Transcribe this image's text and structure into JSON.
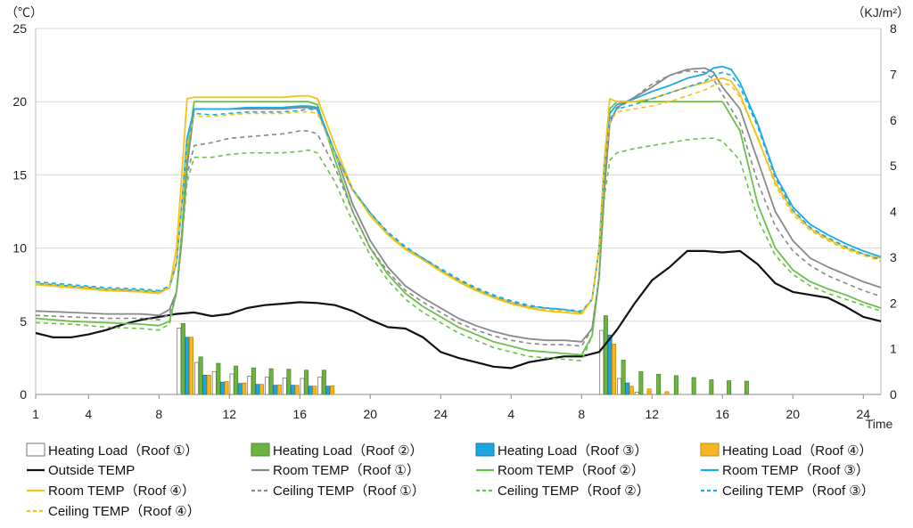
{
  "chart_data": {
    "type": "line",
    "title": "",
    "left_unit": "（℃）",
    "right_unit": "（KJ/m²）",
    "xlabel": "Time",
    "left_ylim": [
      0,
      25
    ],
    "right_ylim": [
      0,
      8
    ],
    "left_ticks": [
      0,
      5,
      10,
      15,
      20,
      25
    ],
    "right_ticks": [
      0,
      1,
      2,
      3,
      4,
      5,
      6,
      7,
      8
    ],
    "x_range": [
      0,
      48
    ],
    "x_ticks": [
      {
        "pos": 0,
        "label": "1"
      },
      {
        "pos": 3,
        "label": "4"
      },
      {
        "pos": 7,
        "label": "8"
      },
      {
        "pos": 11,
        "label": "12"
      },
      {
        "pos": 15,
        "label": "16"
      },
      {
        "pos": 19,
        "label": "20"
      },
      {
        "pos": 23,
        "label": "24"
      },
      {
        "pos": 27,
        "label": "4"
      },
      {
        "pos": 31,
        "label": "8"
      },
      {
        "pos": 35,
        "label": "12"
      },
      {
        "pos": 39,
        "label": "16"
      },
      {
        "pos": 43,
        "label": "20"
      },
      {
        "pos": 47,
        "label": "24"
      }
    ],
    "grid": true,
    "legend_position": "bottom",
    "bar_series": [
      {
        "name": "Heating Load（Roof ①）",
        "fill": "#ffffff",
        "stroke": "#777777",
        "x": [
          8,
          9,
          10,
          11,
          12,
          13,
          14,
          15,
          16,
          32,
          33,
          34
        ],
        "values": [
          1.45,
          0.7,
          0.5,
          0.45,
          0.4,
          0.38,
          0.36,
          0.35,
          0.38,
          1.4,
          0.35,
          0.05
        ]
      },
      {
        "name": "Heating Load（Roof ②）",
        "fill": "#6db33f",
        "stroke": "#4f8a2a",
        "x": [
          8,
          9,
          10,
          11,
          12,
          13,
          14,
          15,
          16,
          32,
          33,
          34,
          35,
          36,
          37,
          38,
          39,
          40
        ],
        "values": [
          1.55,
          0.82,
          0.68,
          0.62,
          0.58,
          0.56,
          0.55,
          0.53,
          0.53,
          1.72,
          0.75,
          0.5,
          0.44,
          0.41,
          0.37,
          0.32,
          0.3,
          0.29
        ]
      },
      {
        "name": "Heating Load（Roof ③）",
        "fill": "#1fa5e0",
        "stroke": "#1277a8",
        "x": [
          8,
          9,
          10,
          11,
          12,
          13,
          14,
          15,
          16,
          32,
          33
        ],
        "values": [
          1.25,
          0.42,
          0.27,
          0.24,
          0.22,
          0.2,
          0.2,
          0.18,
          0.18,
          1.3,
          0.25
        ]
      },
      {
        "name": "Heating Load（Roof ④）",
        "fill": "#f5b620",
        "stroke": "#c58a10",
        "x": [
          8,
          9,
          10,
          11,
          12,
          13,
          14,
          15,
          16,
          32,
          33,
          34,
          35
        ],
        "values": [
          1.25,
          0.42,
          0.28,
          0.25,
          0.22,
          0.21,
          0.2,
          0.18,
          0.19,
          1.1,
          0.18,
          0.12,
          0.06
        ]
      }
    ],
    "line_series": [
      {
        "name": "Outside TEMP",
        "color": "#111111",
        "dash": "",
        "width": 2.2,
        "x": [
          0,
          1,
          2,
          3,
          4,
          5,
          6,
          7,
          8,
          9,
          10,
          11,
          12,
          13,
          14,
          15,
          16,
          17,
          18,
          19,
          20,
          21,
          22,
          23,
          24,
          25,
          26,
          27,
          28,
          29,
          30,
          31,
          32,
          33,
          34,
          35,
          36,
          37,
          38,
          39,
          40,
          41,
          42,
          43,
          44,
          45,
          46,
          47,
          48
        ],
        "values": [
          4.2,
          3.9,
          3.9,
          4.1,
          4.4,
          4.8,
          5.1,
          5.3,
          5.5,
          5.6,
          5.35,
          5.5,
          5.9,
          6.1,
          6.2,
          6.3,
          6.25,
          6.1,
          5.7,
          5.1,
          4.6,
          4.5,
          3.9,
          2.9,
          2.5,
          2.2,
          1.9,
          1.8,
          2.2,
          2.4,
          2.6,
          2.6,
          2.9,
          4.4,
          6.2,
          7.8,
          8.7,
          9.8,
          9.8,
          9.7,
          9.8,
          8.9,
          7.6,
          7.0,
          6.8,
          6.6,
          6.0,
          5.3,
          5.0
        ]
      },
      {
        "name": "Room TEMP（Roof ①）",
        "color": "#888888",
        "dash": "",
        "width": 1.8,
        "x": [
          0,
          2,
          4,
          6,
          7,
          7.6,
          8,
          8.3,
          8.6,
          9,
          10,
          11,
          12,
          13,
          14,
          15,
          15.5,
          16,
          17,
          18,
          19,
          20,
          21,
          22,
          23,
          24,
          25,
          26,
          27,
          28,
          29,
          30,
          31,
          31.6,
          32,
          32.3,
          32.6,
          33,
          34,
          35,
          36,
          37,
          38,
          38.5,
          39,
          40,
          41,
          42,
          43,
          44,
          45,
          46,
          47,
          48
        ],
        "values": [
          5.7,
          5.6,
          5.5,
          5.5,
          5.4,
          5.8,
          7.0,
          10.5,
          15.5,
          19.5,
          19.5,
          19.5,
          19.5,
          19.5,
          19.5,
          19.6,
          19.6,
          19.5,
          16.5,
          13.0,
          10.5,
          8.7,
          7.4,
          6.6,
          5.9,
          5.2,
          4.7,
          4.3,
          4.0,
          3.8,
          3.7,
          3.7,
          3.6,
          4.5,
          8.0,
          14.0,
          18.5,
          19.6,
          20.3,
          21.0,
          21.8,
          22.2,
          22.3,
          22.0,
          21.0,
          19.5,
          16.0,
          12.5,
          10.5,
          9.3,
          8.7,
          8.2,
          7.7,
          7.3
        ]
      },
      {
        "name": "Room TEMP（Roof ②）",
        "color": "#6cc04a",
        "dash": "",
        "width": 1.8,
        "x": [
          0,
          2,
          4,
          6,
          7,
          7.6,
          8,
          8.3,
          8.6,
          9,
          10,
          11,
          12,
          13,
          14,
          15,
          15.5,
          16,
          17,
          18,
          19,
          20,
          21,
          22,
          23,
          24,
          25,
          26,
          27,
          28,
          29,
          30,
          31,
          31.6,
          32,
          32.3,
          32.6,
          33,
          34,
          35,
          36,
          37,
          38,
          38.5,
          39,
          40,
          41,
          42,
          43,
          44,
          45,
          46,
          47,
          48
        ],
        "values": [
          5.2,
          5.0,
          4.9,
          4.8,
          4.7,
          5.0,
          7.0,
          11.0,
          16.5,
          20.0,
          20.0,
          20.0,
          20.0,
          20.0,
          20.0,
          20.0,
          20.0,
          19.8,
          16.0,
          12.5,
          10.0,
          8.2,
          6.9,
          6.0,
          5.3,
          4.6,
          4.1,
          3.6,
          3.3,
          3.0,
          2.9,
          2.8,
          2.7,
          4.0,
          8.0,
          15.0,
          19.5,
          20.0,
          20.0,
          20.0,
          20.0,
          20.0,
          20.0,
          20.0,
          20.0,
          18.0,
          13.0,
          10.0,
          8.5,
          7.7,
          7.2,
          6.8,
          6.3,
          5.9
        ]
      },
      {
        "name": "Room TEMP（Roof ③）",
        "color": "#1aaae6",
        "dash": "",
        "width": 1.8,
        "x": [
          0,
          2,
          4,
          6,
          7,
          7.6,
          8,
          8.3,
          8.6,
          9,
          10,
          11,
          12,
          13,
          14,
          15,
          15.5,
          16,
          17,
          18,
          19,
          20,
          21,
          22,
          23,
          24,
          25,
          26,
          27,
          28,
          29,
          30,
          31,
          31.6,
          32,
          32.3,
          32.6,
          33,
          34,
          35,
          36,
          37,
          38,
          38.5,
          39,
          39.5,
          40,
          41,
          42,
          43,
          44,
          45,
          46,
          47,
          48
        ],
        "values": [
          7.6,
          7.4,
          7.2,
          7.1,
          7.0,
          7.3,
          9.0,
          13.0,
          17.5,
          19.5,
          19.5,
          19.5,
          19.6,
          19.6,
          19.6,
          19.7,
          19.7,
          19.6,
          16.5,
          14.0,
          12.4,
          11.0,
          10.0,
          9.3,
          8.5,
          7.8,
          7.2,
          6.7,
          6.3,
          6.0,
          5.9,
          5.8,
          5.6,
          6.5,
          10.0,
          16.0,
          19.2,
          19.8,
          20.2,
          20.7,
          21.1,
          21.6,
          21.9,
          22.3,
          22.4,
          22.2,
          21.3,
          18.5,
          15.0,
          12.8,
          11.6,
          10.9,
          10.3,
          9.8,
          9.4
        ]
      },
      {
        "name": "Room TEMP（Roof ④）",
        "color": "#f5c218",
        "dash": "",
        "width": 1.8,
        "x": [
          0,
          2,
          4,
          6,
          7,
          7.6,
          8,
          8.3,
          8.6,
          9,
          10,
          11,
          12,
          13,
          14,
          15,
          15.5,
          16,
          17,
          18,
          19,
          20,
          21,
          22,
          23,
          24,
          25,
          26,
          27,
          28,
          29,
          30,
          31,
          31.6,
          32,
          32.3,
          32.6,
          33,
          34,
          35,
          36,
          37,
          38,
          38.5,
          39,
          39.5,
          40,
          41,
          42,
          43,
          44,
          45,
          46,
          47,
          48
        ],
        "values": [
          7.5,
          7.3,
          7.1,
          7.0,
          6.9,
          7.3,
          10.0,
          15.0,
          20.2,
          20.3,
          20.3,
          20.3,
          20.3,
          20.3,
          20.3,
          20.4,
          20.4,
          20.2,
          17.0,
          14.0,
          12.2,
          10.9,
          9.9,
          9.2,
          8.4,
          7.7,
          7.1,
          6.6,
          6.2,
          5.9,
          5.7,
          5.6,
          5.5,
          6.5,
          10.0,
          16.0,
          20.2,
          20.0,
          20.0,
          20.2,
          20.6,
          21.0,
          21.3,
          21.5,
          21.6,
          21.4,
          20.5,
          17.5,
          14.5,
          12.5,
          11.3,
          10.6,
          10.0,
          9.6,
          9.3
        ]
      },
      {
        "name": "Ceiling TEMP（Roof ①）",
        "color": "#888888",
        "dash": "5,4",
        "width": 1.6,
        "x": [
          0,
          2,
          4,
          6,
          7,
          7.6,
          8,
          8.3,
          8.6,
          9,
          10,
          11,
          12,
          13,
          14,
          15,
          15.5,
          16,
          17,
          18,
          19,
          20,
          21,
          22,
          23,
          24,
          25,
          26,
          27,
          28,
          29,
          30,
          31,
          31.6,
          32,
          32.3,
          32.6,
          33,
          34,
          35,
          36,
          37,
          38,
          38.5,
          39,
          40,
          41,
          42,
          43,
          44,
          45,
          46,
          47,
          48
        ],
        "values": [
          5.4,
          5.3,
          5.2,
          5.2,
          5.1,
          5.5,
          7.0,
          11.0,
          15.0,
          17.0,
          17.2,
          17.5,
          17.6,
          17.7,
          17.8,
          18.0,
          18.0,
          17.8,
          15.5,
          12.5,
          10.0,
          8.4,
          7.1,
          6.3,
          5.6,
          4.9,
          4.4,
          4.0,
          3.7,
          3.5,
          3.4,
          3.4,
          3.3,
          4.5,
          8.0,
          14.0,
          18.5,
          19.5,
          20.3,
          21.2,
          21.8,
          22.1,
          22.0,
          21.5,
          20.5,
          18.5,
          14.5,
          11.5,
          9.8,
          8.8,
          8.1,
          7.6,
          7.1,
          6.7
        ]
      },
      {
        "name": "Ceiling TEMP（Roof ②）",
        "color": "#6cc04a",
        "dash": "5,4",
        "width": 1.6,
        "x": [
          0,
          2,
          4,
          6,
          7,
          7.6,
          8,
          8.3,
          8.6,
          9,
          10,
          11,
          12,
          13,
          14,
          15,
          15.5,
          16,
          17,
          18,
          19,
          20,
          21,
          22,
          23,
          24,
          25,
          26,
          27,
          28,
          29,
          30,
          31,
          31.6,
          32,
          32.3,
          32.6,
          33,
          34,
          35,
          36,
          37,
          38,
          38.5,
          39,
          40,
          41,
          42,
          43,
          44,
          45,
          46,
          47,
          48
        ],
        "values": [
          4.9,
          4.8,
          4.6,
          4.5,
          4.4,
          4.8,
          7.0,
          10.5,
          14.5,
          16.2,
          16.2,
          16.4,
          16.5,
          16.5,
          16.5,
          16.6,
          16.7,
          16.5,
          14.5,
          11.8,
          9.5,
          7.8,
          6.5,
          5.6,
          4.9,
          4.2,
          3.7,
          3.2,
          2.9,
          2.6,
          2.5,
          2.4,
          2.3,
          4.0,
          8.0,
          13.5,
          16.0,
          16.5,
          16.8,
          17.0,
          17.2,
          17.4,
          17.5,
          17.5,
          17.3,
          16.0,
          12.0,
          9.5,
          8.2,
          7.4,
          6.9,
          6.5,
          6.1,
          5.7
        ]
      },
      {
        "name": "Ceiling TEMP（Roof ③）",
        "color": "#1aaae6",
        "dash": "5,4",
        "width": 1.6,
        "x": [
          0,
          2,
          4,
          6,
          7,
          7.6,
          8,
          8.3,
          8.6,
          9,
          10,
          11,
          12,
          13,
          14,
          15,
          15.5,
          16,
          17,
          18,
          19,
          20,
          21,
          22,
          23,
          24,
          25,
          26,
          27,
          28,
          29,
          30,
          31,
          31.6,
          32,
          32.3,
          32.6,
          33,
          34,
          35,
          36,
          37,
          38,
          38.5,
          39,
          39.5,
          40,
          41,
          42,
          43,
          44,
          45,
          46,
          47,
          48
        ],
        "values": [
          7.7,
          7.5,
          7.3,
          7.2,
          7.1,
          7.4,
          9.0,
          13.0,
          17.5,
          19.2,
          19.1,
          19.2,
          19.3,
          19.3,
          19.3,
          19.4,
          19.5,
          19.4,
          16.5,
          14.0,
          12.4,
          11.1,
          10.1,
          9.3,
          8.6,
          7.9,
          7.3,
          6.8,
          6.4,
          6.1,
          5.9,
          5.8,
          5.7,
          6.5,
          10.0,
          15.5,
          18.8,
          19.5,
          19.8,
          20.2,
          20.6,
          21.0,
          21.4,
          21.8,
          22.0,
          21.8,
          21.0,
          18.3,
          14.8,
          12.6,
          11.4,
          10.7,
          10.1,
          9.6,
          9.2
        ]
      },
      {
        "name": "Ceiling TEMP（Roof ④）",
        "color": "#f5c218",
        "dash": "5,4",
        "width": 1.6,
        "x": [
          0,
          2,
          4,
          6,
          7,
          7.6,
          8,
          8.3,
          8.6,
          9,
          10,
          11,
          12,
          13,
          14,
          15,
          15.5,
          16,
          17,
          18,
          19,
          20,
          21,
          22,
          23,
          24,
          25,
          26,
          27,
          28,
          29,
          30,
          31,
          31.6,
          32,
          32.3,
          32.6,
          33,
          34,
          35,
          36,
          37,
          38,
          38.5,
          39,
          39.5,
          40,
          41,
          42,
          43,
          44,
          45,
          46,
          47,
          48
        ],
        "values": [
          7.6,
          7.4,
          7.2,
          7.1,
          7.0,
          7.3,
          9.0,
          13.0,
          17.0,
          19.0,
          19.0,
          19.1,
          19.2,
          19.2,
          19.2,
          19.3,
          19.3,
          19.2,
          16.4,
          13.9,
          12.3,
          11.0,
          10.0,
          9.2,
          8.5,
          7.8,
          7.2,
          6.7,
          6.3,
          6.0,
          5.8,
          5.7,
          5.6,
          6.5,
          10.0,
          15.5,
          18.6,
          19.3,
          19.5,
          19.7,
          20.0,
          20.4,
          20.8,
          21.1,
          21.3,
          21.1,
          20.3,
          17.6,
          14.3,
          12.3,
          11.2,
          10.5,
          9.9,
          9.5,
          9.1
        ]
      }
    ]
  }
}
